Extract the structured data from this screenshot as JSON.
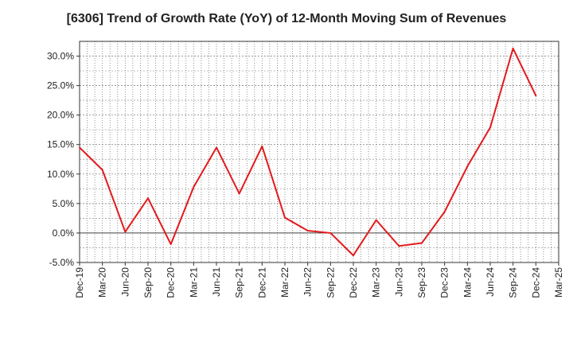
{
  "chart_data": {
    "type": "line",
    "title": "[6306]  Trend of Growth Rate (YoY) of 12-Month Moving Sum of Revenues",
    "xlabel": "",
    "ylabel": "",
    "x_tick_labels": [
      "Dec-19",
      "Mar-20",
      "Jun-20",
      "Sep-20",
      "Dec-20",
      "Mar-21",
      "Jun-21",
      "Sep-21",
      "Dec-21",
      "Mar-22",
      "Jun-22",
      "Sep-22",
      "Dec-22",
      "Mar-23",
      "Jun-23",
      "Sep-23",
      "Dec-23",
      "Mar-24",
      "Jun-24",
      "Sep-24",
      "Dec-24",
      "Mar-25"
    ],
    "y_tick_labels": [
      "30.0%",
      "25.0%",
      "20.0%",
      "15.0%",
      "10.0%",
      "5.0%",
      "0.0%",
      "-5.0%"
    ],
    "y_ticks": [
      30,
      25,
      20,
      15,
      10,
      5,
      0,
      -5
    ],
    "ylim": [
      -5,
      32.5
    ],
    "grid": true,
    "series": [
      {
        "color": "#e31a1c",
        "x": [
          "Dec-19",
          "Mar-20",
          "Jun-20",
          "Sep-20",
          "Dec-20",
          "Mar-21",
          "Jun-21",
          "Sep-21",
          "Dec-21",
          "Mar-22",
          "Jun-22",
          "Sep-22",
          "Dec-22",
          "Mar-23",
          "Jun-23",
          "Sep-23",
          "Dec-23",
          "Mar-24",
          "Jun-24",
          "Sep-24",
          "Dec-24"
        ],
        "values": [
          14.5,
          10.7,
          0.2,
          5.9,
          -1.9,
          7.8,
          14.5,
          6.7,
          14.7,
          2.6,
          0.4,
          0.0,
          -3.8,
          2.2,
          -2.2,
          -1.7,
          3.6,
          11.3,
          17.9,
          31.3,
          23.3
        ]
      }
    ]
  }
}
